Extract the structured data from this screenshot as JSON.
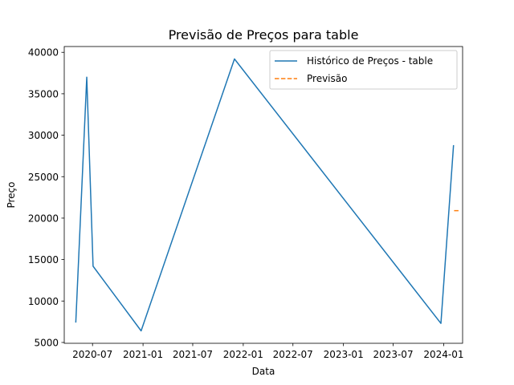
{
  "chart_data": {
    "type": "line",
    "title": "Previsão de Preços para table",
    "xlabel": "Data",
    "ylabel": "Preço",
    "grid": false,
    "legend_position": "top-right",
    "x_range": [
      "2020-03-20",
      "2024-03-10"
    ],
    "y_range": [
      4900,
      40700
    ],
    "x_ticks": [
      {
        "date": "2020-07-01",
        "label": "2020-07"
      },
      {
        "date": "2021-01-01",
        "label": "2021-01"
      },
      {
        "date": "2021-07-01",
        "label": "2021-07"
      },
      {
        "date": "2022-01-01",
        "label": "2022-01"
      },
      {
        "date": "2022-07-01",
        "label": "2022-07"
      },
      {
        "date": "2023-01-01",
        "label": "2023-01"
      },
      {
        "date": "2023-07-01",
        "label": "2023-07"
      },
      {
        "date": "2024-01-01",
        "label": "2024-01"
      }
    ],
    "y_ticks": [
      5000,
      10000,
      15000,
      20000,
      25000,
      30000,
      35000,
      40000
    ],
    "series": [
      {
        "name": "Histórico de Preços - table",
        "color": "#1f77b4",
        "style": "solid",
        "points": [
          {
            "x": "2020-05-01",
            "y": 7400
          },
          {
            "x": "2020-06-10",
            "y": 37000
          },
          {
            "x": "2020-07-03",
            "y": 14200
          },
          {
            "x": "2020-12-25",
            "y": 6400
          },
          {
            "x": "2021-11-30",
            "y": 39200
          },
          {
            "x": "2023-12-22",
            "y": 7300
          },
          {
            "x": "2024-02-06",
            "y": 28800
          }
        ]
      },
      {
        "name": "Previsão",
        "color": "#ff7f0e",
        "style": "dashed",
        "points": [
          {
            "x": "2024-02-08",
            "y": 20900
          },
          {
            "x": "2024-02-26",
            "y": 20900
          }
        ]
      }
    ]
  }
}
